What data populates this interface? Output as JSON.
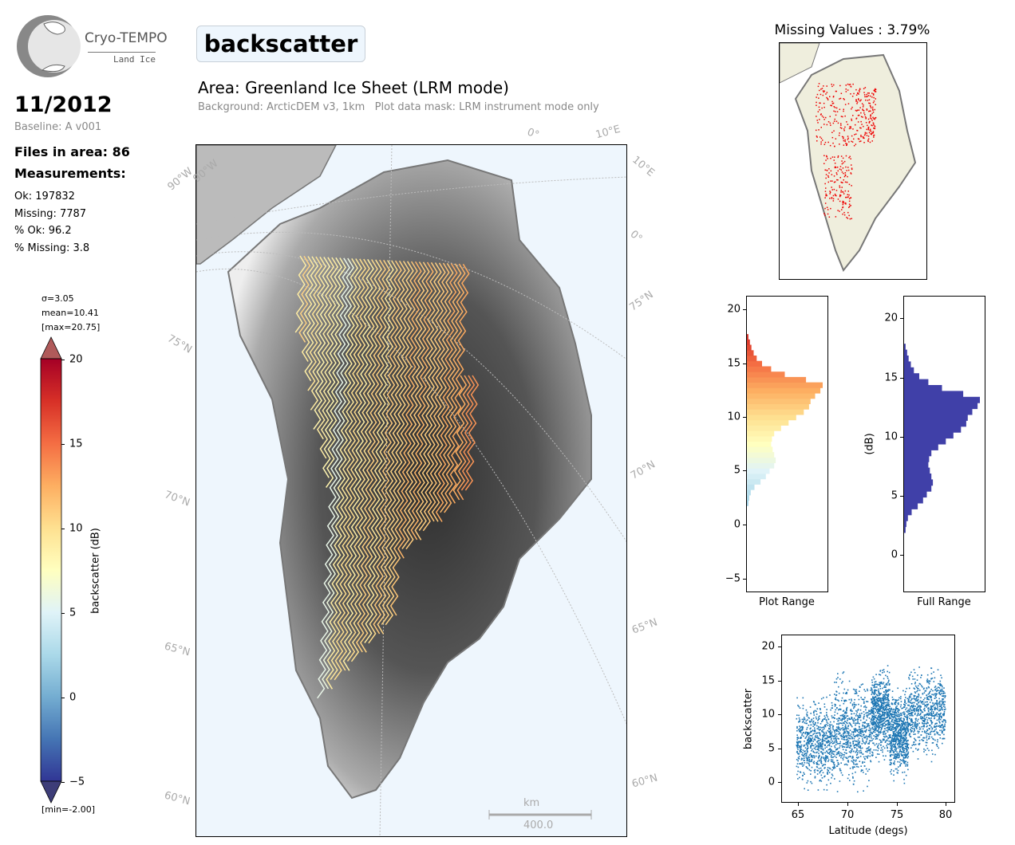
{
  "logo": {
    "name": "Cryo-TEMPO",
    "sub": "Land Ice"
  },
  "title": "backscatter",
  "area": "Area: Greenland Ice Sheet (LRM mode)",
  "subtitle": "Background: ArcticDEM v3, 1km   Plot data mask: LRM instrument mode only",
  "date": "11/2012",
  "baseline": "Baseline: A v001",
  "files": "Files in area: 86",
  "measurements": "Measurements:",
  "stats": [
    "Ok: 197832",
    "Missing: 7787",
    "% Ok: 96.2",
    "% Missing: 3.8"
  ],
  "colorbar": {
    "sigma": "σ=3.05",
    "mean": "mean=10.41",
    "max": "[max=20.75]",
    "min": "[min=-2.00]",
    "label": "backscatter (dB)",
    "ticks": [
      "20",
      "15",
      "10",
      "5",
      "0",
      "−5"
    ],
    "colors": [
      "#a50026",
      "#d73027",
      "#f46d43",
      "#fdae61",
      "#fee090",
      "#ffffbf",
      "#e0f3f8",
      "#abd9e9",
      "#74add1",
      "#4575b4",
      "#313695"
    ]
  },
  "map": {
    "grid_labels": [
      "90°W",
      "90°W",
      "0°",
      "10°E",
      "10°E",
      "0°",
      "75°N",
      "75°N",
      "70°N",
      "70°N",
      "65°N",
      "65°N",
      "60°N",
      "60°N"
    ],
    "scale_unit": "km",
    "scale_value": "400.0"
  },
  "missing": {
    "title": "Missing Values : 3.79%"
  },
  "chart_data": [
    {
      "type": "bar",
      "title": "Plot Range",
      "orientation": "horizontal",
      "ylim": [
        -6,
        21.5
      ],
      "yticks": [
        "20",
        "15",
        "10",
        "5",
        "0",
        "−5"
      ],
      "xlabel": "Plot Range",
      "bin_start": 2.0,
      "bin_width": 0.5,
      "values": [
        0.02,
        0.03,
        0.05,
        0.1,
        0.18,
        0.25,
        0.3,
        0.36,
        0.38,
        0.36,
        0.34,
        0.32,
        0.33,
        0.36,
        0.45,
        0.55,
        0.65,
        0.75,
        0.82,
        0.84,
        0.9,
        0.97,
        1.0,
        0.78,
        0.5,
        0.32,
        0.2,
        0.13,
        0.09,
        0.06,
        0.04,
        0.02
      ]
    },
    {
      "type": "bar",
      "title": "Full Range",
      "orientation": "horizontal",
      "ylim": [
        -3,
        22
      ],
      "yticks": [
        "20",
        "15",
        "10",
        "5",
        "0"
      ],
      "xlabel": "Full Range",
      "ylabel": "(dB)",
      "color": "#4040a8",
      "bin_start": 2.0,
      "bin_width": 0.5,
      "values": [
        0.02,
        0.03,
        0.05,
        0.1,
        0.18,
        0.25,
        0.3,
        0.36,
        0.38,
        0.36,
        0.34,
        0.32,
        0.33,
        0.36,
        0.45,
        0.55,
        0.65,
        0.75,
        0.82,
        0.84,
        0.9,
        0.97,
        1.0,
        0.78,
        0.5,
        0.32,
        0.2,
        0.13,
        0.09,
        0.06,
        0.04,
        0.02
      ]
    },
    {
      "type": "scatter",
      "xlabel": "Latitude (degs)",
      "ylabel": "backscatter",
      "xlim": [
        62.5,
        81
      ],
      "ylim": [
        -2,
        22
      ],
      "xticks": [
        "65",
        "70",
        "75",
        "80"
      ],
      "yticks": [
        "20",
        "15",
        "10",
        "5",
        "0"
      ],
      "color": "#1f77b4",
      "segments": [
        {
          "lat": [
            64,
            68
          ],
          "mean": 6.5,
          "spread": 4
        },
        {
          "lat": [
            68,
            72
          ],
          "mean": 8,
          "spread": 5
        },
        {
          "lat": [
            72,
            74
          ],
          "mean": 11,
          "spread": 4
        },
        {
          "lat": [
            74,
            76
          ],
          "mean": 8,
          "spread": 4
        },
        {
          "lat": [
            76,
            80
          ],
          "mean": 11,
          "spread": 4
        }
      ]
    }
  ]
}
